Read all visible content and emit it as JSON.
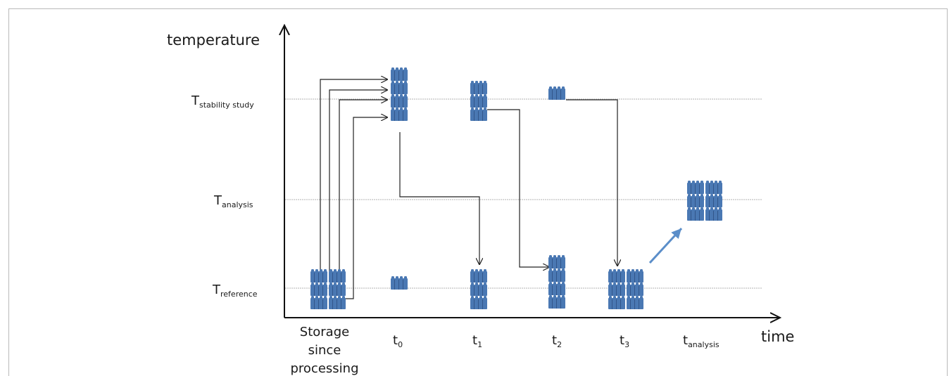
{
  "axes": {
    "y_label": "temperature",
    "x_label": "time"
  },
  "levels": {
    "stability": {
      "main": "T",
      "sub": "stability study"
    },
    "analysis": {
      "main": "T",
      "sub": "analysis"
    },
    "reference": {
      "main": "T",
      "sub": "reference"
    }
  },
  "time_points": {
    "storage": [
      "Storage",
      "since",
      "processing"
    ],
    "t0": {
      "main": "t",
      "sub": "0"
    },
    "t1": {
      "main": "t",
      "sub": "1"
    },
    "t2": {
      "main": "t",
      "sub": "2"
    },
    "t3": {
      "main": "t",
      "sub": "3"
    },
    "tanalysis": {
      "main": "t",
      "sub": "analysis"
    }
  },
  "colors": {
    "vial": "#4a78b3",
    "vial_dark": "#2d4f80",
    "gridline": "#b0b0b0",
    "arrow": "#222222",
    "highlight_arrow": "#5b8ec9"
  },
  "vial_groups": {
    "storage": {
      "level": "reference",
      "cols": 2,
      "rows": 3
    },
    "t0_stability": {
      "level": "stability",
      "cols": 1,
      "rows": 4
    },
    "t0_reference": {
      "level": "reference",
      "cols": 1,
      "rows": 1
    },
    "t1_stability": {
      "level": "stability",
      "cols": 1,
      "rows": 3
    },
    "t1_reference": {
      "level": "reference",
      "cols": 1,
      "rows": 3
    },
    "t2_stability": {
      "level": "stability",
      "cols": 1,
      "rows": 1
    },
    "t2_reference": {
      "level": "reference",
      "cols": 1,
      "rows": 4
    },
    "t3_reference": {
      "level": "reference",
      "cols": 2,
      "rows": 3
    },
    "analysis_group": {
      "level": "analysis",
      "cols": 2,
      "rows": 3
    }
  }
}
